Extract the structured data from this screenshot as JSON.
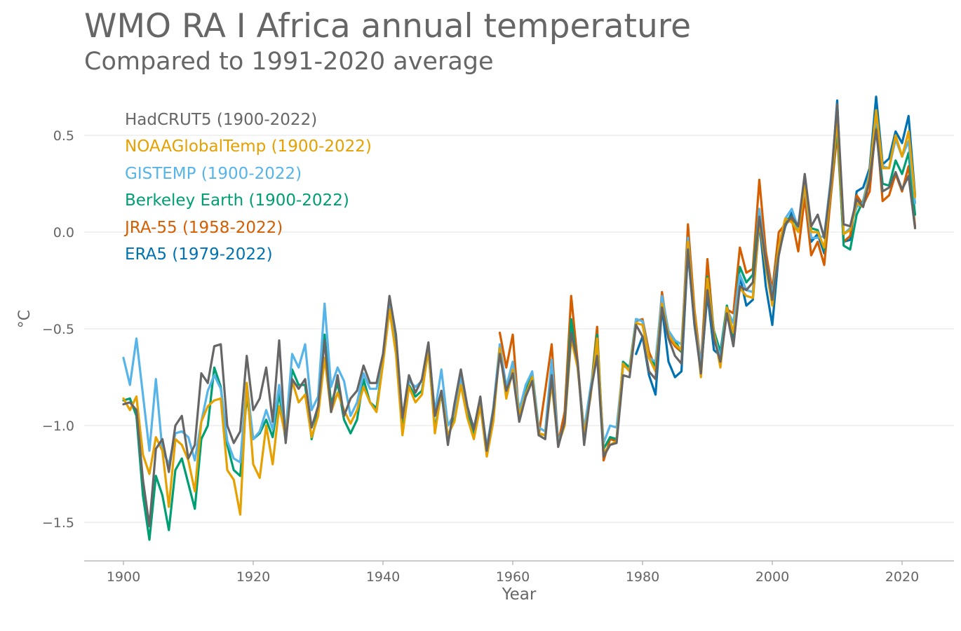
{
  "chart_data": {
    "type": "line",
    "title": "WMO RA I Africa annual temperature",
    "subtitle": "Compared to 1991-2020 average",
    "xlabel": "Year",
    "ylabel": "°C",
    "xlim": [
      1897,
      2038
    ],
    "ylim": [
      -1.7,
      0.7
    ],
    "x_ticks": [
      1900,
      1920,
      1940,
      1960,
      1980,
      2000,
      2020
    ],
    "x_tick_labels": [
      "1900",
      "1920",
      "1940",
      "1960",
      "1980",
      "2000",
      "2020"
    ],
    "y_ticks": [
      -1.5,
      -1.0,
      -0.5,
      0.0,
      0.5
    ],
    "y_tick_labels": [
      "−1.5",
      "−1.0",
      "−0.5",
      "0.0",
      "0.5"
    ],
    "grid": "horizontal",
    "legend_placement": "top-left",
    "series": [
      {
        "name": "HadCRUT5 (1900-2022)",
        "color": "#666666",
        "start_year": 1900,
        "values": [
          -0.89,
          -0.88,
          -0.92,
          -1.28,
          -1.52,
          -1.12,
          -1.07,
          -1.24,
          -1.0,
          -0.95,
          -1.17,
          -1.1,
          -0.73,
          -0.78,
          -0.59,
          -0.58,
          -1.0,
          -1.09,
          -1.03,
          -0.64,
          -0.92,
          -0.86,
          -0.7,
          -0.98,
          -0.56,
          -1.09,
          -0.76,
          -0.81,
          -0.76,
          -1.01,
          -0.9,
          -0.56,
          -0.93,
          -0.74,
          -0.95,
          -0.86,
          -0.82,
          -0.69,
          -0.78,
          -0.78,
          -0.63,
          -0.33,
          -0.53,
          -0.96,
          -0.74,
          -0.83,
          -0.76,
          -0.57,
          -0.95,
          -0.82,
          -1.1,
          -0.89,
          -0.71,
          -0.9,
          -1.02,
          -0.85,
          -1.13,
          -0.92,
          -0.63,
          -0.82,
          -0.73,
          -0.98,
          -0.85,
          -0.77,
          -1.05,
          -1.07,
          -0.74,
          -1.11,
          -0.98,
          -0.52,
          -0.67,
          -1.1,
          -0.83,
          -0.64,
          -1.16,
          -1.1,
          -1.09,
          -0.74,
          -0.75,
          -0.48,
          -0.54,
          -0.72,
          -0.76,
          -0.39,
          -0.55,
          -0.64,
          -0.68,
          -0.09,
          -0.47,
          -0.73,
          -0.3,
          -0.55,
          -0.67,
          -0.42,
          -0.59,
          -0.28,
          -0.3,
          -0.26,
          0.08,
          -0.15,
          -0.35,
          -0.12,
          0.04,
          0.08,
          0.03,
          0.3,
          0.03,
          0.09,
          -0.03,
          0.25,
          0.66,
          0.04,
          0.03,
          0.17,
          0.13,
          0.27,
          0.53,
          0.21,
          0.23,
          0.31,
          0.22,
          0.29,
          0.02
        ]
      },
      {
        "name": "NOAAGlobalTemp (1900-2022)",
        "color": "#e6a000",
        "start_year": 1900,
        "values": [
          -0.86,
          -0.92,
          -0.85,
          -1.15,
          -1.25,
          -1.06,
          -1.13,
          -1.42,
          -1.07,
          -1.1,
          -1.18,
          -1.34,
          -0.98,
          -0.9,
          -0.87,
          -0.86,
          -1.23,
          -1.28,
          -1.46,
          -0.78,
          -1.2,
          -1.27,
          -1.0,
          -1.2,
          -0.9,
          -1.06,
          -0.77,
          -0.88,
          -0.84,
          -1.06,
          -0.95,
          -0.65,
          -0.93,
          -0.83,
          -0.92,
          -0.99,
          -0.92,
          -0.8,
          -0.88,
          -0.93,
          -0.68,
          -0.4,
          -0.63,
          -1.05,
          -0.8,
          -0.88,
          -0.84,
          -0.6,
          -1.04,
          -0.82,
          -1.05,
          -0.98,
          -0.79,
          -0.96,
          -1.07,
          -0.9,
          -1.16,
          -0.98,
          -0.6,
          -0.86,
          -0.71,
          -0.95,
          -0.84,
          -0.75,
          -1.04,
          -1.05,
          -0.78,
          -1.1,
          -1.0,
          -0.55,
          -0.7,
          -1.05,
          -0.85,
          -0.55,
          -1.14,
          -1.1,
          -1.08,
          -0.68,
          -0.72,
          -0.47,
          -0.48,
          -0.65,
          -0.72,
          -0.37,
          -0.53,
          -0.58,
          -0.61,
          -0.05,
          -0.42,
          -0.75,
          -0.24,
          -0.52,
          -0.7,
          -0.39,
          -0.52,
          -0.29,
          -0.33,
          -0.34,
          0.06,
          -0.18,
          -0.38,
          -0.07,
          0.07,
          0.05,
          0.0,
          0.24,
          0.0,
          0.0,
          -0.08,
          0.22,
          0.58,
          -0.01,
          0.01,
          0.15,
          0.13,
          0.3,
          0.63,
          0.33,
          0.33,
          0.5,
          0.39,
          0.52,
          0.18
        ]
      },
      {
        "name": "GISTEMP (1900-2022)",
        "color": "#56b4e9",
        "start_year": 1900,
        "values": [
          -0.65,
          -0.79,
          -0.55,
          -0.84,
          -1.13,
          -0.76,
          -1.13,
          -1.2,
          -1.04,
          -1.03,
          -1.06,
          -1.18,
          -0.98,
          -0.82,
          -0.74,
          -0.81,
          -1.08,
          -1.17,
          -1.19,
          -0.78,
          -1.07,
          -1.03,
          -0.92,
          -1.02,
          -0.79,
          -1.03,
          -0.63,
          -0.7,
          -0.58,
          -0.92,
          -0.85,
          -0.37,
          -0.8,
          -0.7,
          -0.77,
          -0.95,
          -0.88,
          -0.73,
          -0.81,
          -0.81,
          -0.64,
          -0.37,
          -0.54,
          -0.96,
          -0.77,
          -0.8,
          -0.77,
          -0.6,
          -0.93,
          -0.71,
          -1.0,
          -0.94,
          -0.75,
          -0.91,
          -1.01,
          -0.87,
          -1.11,
          -0.91,
          -0.58,
          -0.8,
          -0.67,
          -0.92,
          -0.79,
          -0.72,
          -1.01,
          -1.03,
          -0.66,
          -1.09,
          -0.99,
          -0.54,
          -0.7,
          -1.02,
          -0.8,
          -0.59,
          -1.09,
          -1.0,
          -1.01,
          -0.69,
          -0.71,
          -0.45,
          -0.46,
          -0.65,
          -0.67,
          -0.33,
          -0.51,
          -0.56,
          -0.58,
          -0.03,
          -0.44,
          -0.69,
          -0.28,
          -0.53,
          -0.65,
          -0.4,
          -0.47,
          -0.22,
          -0.3,
          -0.31,
          0.12,
          -0.15,
          -0.33,
          -0.08,
          0.07,
          0.12,
          0.02,
          0.23,
          -0.03,
          -0.03,
          -0.02,
          0.27,
          0.6,
          -0.01,
          0.02,
          0.13,
          0.15,
          0.31,
          0.6,
          0.34,
          0.33,
          0.48,
          0.39,
          0.47,
          0.15
        ]
      },
      {
        "name": "Berkeley Earth (1900-2022)",
        "color": "#009e73",
        "start_year": 1900,
        "values": [
          -0.87,
          -0.86,
          -0.95,
          -1.36,
          -1.59,
          -1.26,
          -1.36,
          -1.54,
          -1.23,
          -1.17,
          -1.3,
          -1.43,
          -1.07,
          -1.0,
          -0.7,
          -0.8,
          -1.1,
          -1.23,
          -1.26,
          -0.85,
          -1.07,
          -1.04,
          -0.97,
          -1.06,
          -0.83,
          -1.08,
          -0.71,
          -0.79,
          -0.79,
          -1.07,
          -0.93,
          -0.53,
          -0.89,
          -0.78,
          -0.97,
          -1.04,
          -0.97,
          -0.76,
          -0.88,
          -0.91,
          -0.67,
          -0.4,
          -0.61,
          -0.99,
          -0.79,
          -0.85,
          -0.82,
          -0.61,
          -1.02,
          -0.83,
          -1.08,
          -0.93,
          -0.74,
          -0.92,
          -1.05,
          -0.88,
          -1.12,
          -0.92,
          -0.6,
          -0.83,
          -0.73,
          -0.96,
          -0.82,
          -0.74,
          -1.04,
          -1.05,
          -0.7,
          -1.09,
          -0.99,
          -0.45,
          -0.7,
          -1.03,
          -0.82,
          -0.53,
          -1.12,
          -1.06,
          -1.07,
          -0.67,
          -0.7,
          -0.45,
          -0.46,
          -0.65,
          -0.69,
          -0.35,
          -0.51,
          -0.56,
          -0.62,
          -0.03,
          -0.45,
          -0.73,
          -0.23,
          -0.51,
          -0.62,
          -0.38,
          -0.53,
          -0.18,
          -0.26,
          -0.22,
          0.11,
          -0.17,
          -0.33,
          -0.07,
          0.06,
          0.08,
          0.02,
          0.24,
          0.02,
          0.01,
          -0.09,
          0.22,
          0.55,
          -0.07,
          -0.09,
          0.09,
          0.16,
          0.3,
          0.55,
          0.25,
          0.24,
          0.37,
          0.3,
          0.41,
          0.09
        ]
      },
      {
        "name": "JRA-55 (1958-2022)",
        "color": "#d55e00",
        "start_year": 1958,
        "values": [
          -0.52,
          -0.7,
          -0.53,
          -0.96,
          -0.84,
          -0.77,
          -1.05,
          -0.82,
          -0.58,
          -1.09,
          -0.93,
          -0.33,
          -0.67,
          -1.05,
          -0.83,
          -0.49,
          -1.18,
          -1.07,
          -1.08,
          -0.67,
          -0.72,
          -0.46,
          -0.45,
          -0.62,
          -0.7,
          -0.31,
          -0.54,
          -0.59,
          -0.62,
          0.04,
          -0.4,
          -0.69,
          -0.14,
          -0.53,
          -0.68,
          -0.4,
          -0.42,
          -0.08,
          -0.21,
          -0.19,
          0.27,
          -0.1,
          -0.3,
          0.0,
          0.04,
          0.07,
          -0.1,
          0.18,
          -0.12,
          -0.05,
          -0.17,
          0.18,
          0.51,
          -0.05,
          -0.02,
          0.19,
          0.14,
          0.21,
          0.57,
          0.16,
          0.19,
          0.3,
          0.21,
          0.34,
          0.03
        ]
      },
      {
        "name": "ERA5 (1979-2022)",
        "color": "#0072b2",
        "start_year": 1979,
        "values": [
          -0.63,
          -0.54,
          -0.74,
          -0.84,
          -0.39,
          -0.67,
          -0.75,
          -0.72,
          -0.1,
          -0.48,
          -0.72,
          -0.32,
          -0.61,
          -0.64,
          -0.41,
          -0.55,
          -0.23,
          -0.38,
          -0.35,
          0.05,
          -0.28,
          -0.48,
          -0.11,
          0.03,
          0.1,
          0.02,
          0.27,
          -0.05,
          -0.01,
          -0.11,
          0.22,
          0.68,
          -0.05,
          -0.04,
          0.21,
          0.23,
          0.33,
          0.7,
          0.35,
          0.38,
          0.52,
          0.46,
          0.6,
          0.19
        ]
      }
    ]
  }
}
